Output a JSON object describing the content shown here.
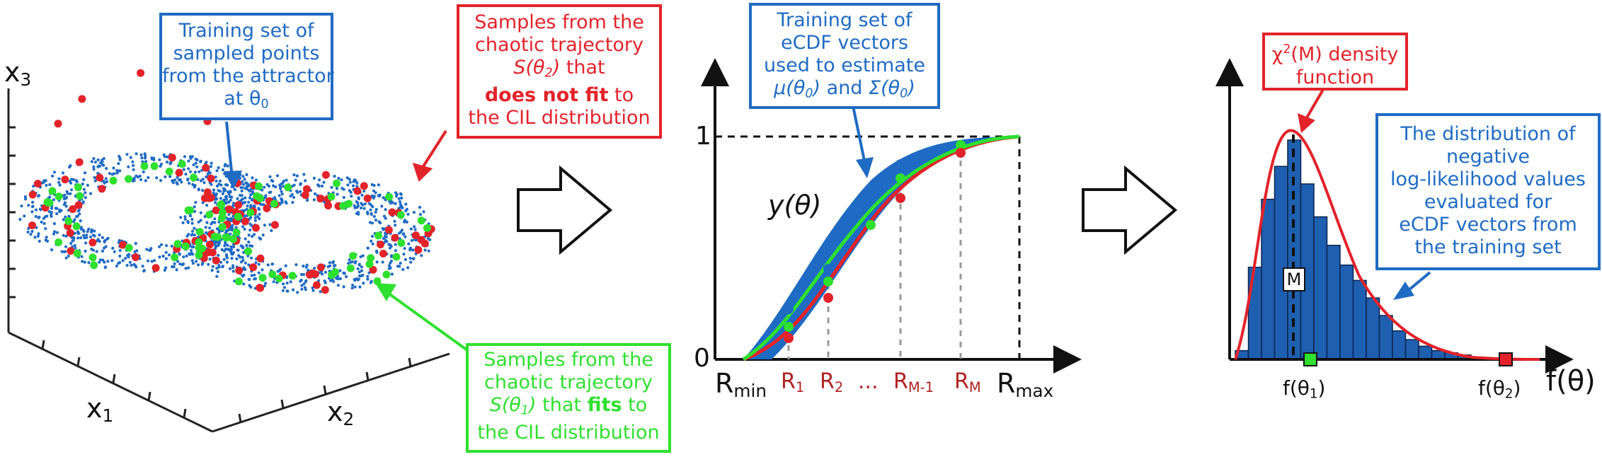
{
  "colors": {
    "blue": "#1f6bc4",
    "red": "#e3232a",
    "green": "#2fe02f",
    "dark_red": "#b22222",
    "histogram": "#1f5fb0"
  },
  "panel1": {
    "axis_x3": "x",
    "axis_x3_sub": "3",
    "axis_x1": "x",
    "axis_x1_sub": "1",
    "axis_x2": "x",
    "axis_x2_sub": "2",
    "caption_blue": [
      "Training set of",
      "sampled points",
      "from the attractor",
      "at θ",
      "0"
    ],
    "caption_red": {
      "l1": "Samples from the",
      "l2": "chaotic trajectory",
      "l3_pre": "S(θ",
      "l3_sub": "2",
      "l3_post": ")",
      "l3_tail": " that",
      "l4": "does not fit",
      "l4_tail": " to",
      "l5": "the CIL distribution"
    },
    "caption_green": {
      "l1": "Samples from the",
      "l2": "chaotic trajectory",
      "l3_pre": "S(θ",
      "l3_sub": "1",
      "l3_post": ")",
      "l3_mid": " that ",
      "l3_bold": "fits",
      "l3_tail": " to",
      "l4": "the CIL distribution"
    }
  },
  "panel2": {
    "caption_blue": {
      "l1": "Training set of",
      "l2": "eCDF vectors",
      "l3": "used to estimate",
      "l4_a": "μ(θ",
      "l4_a_sub": "0",
      "l4_a_post": ")",
      "l4_and": " and ",
      "l4_b": "Σ(θ",
      "l4_b_sub": "0",
      "l4_b_post": ")"
    },
    "y_one": "1",
    "y_zero": "0",
    "curve_label": "y(θ)",
    "x_labels": {
      "rmin": "R",
      "rmin_sub": "min",
      "r1": "R",
      "r1_sub": "1",
      "r2": "R",
      "r2_sub": "2",
      "dots": "...",
      "rm1": "R",
      "rm1_sub": "M-1",
      "rm": "R",
      "rm_sub": "M",
      "rmax": "R",
      "rmax_sub": "max"
    }
  },
  "panel3": {
    "caption_red": {
      "pre": "χ",
      "sup": "2",
      "post": "(M) density",
      "l2": "function"
    },
    "caption_blue": [
      "The distribution of",
      "negative",
      "log-likelihood values",
      "evaluated for",
      "eCDF vectors from",
      "the training set"
    ],
    "m_label": "M",
    "x_axis": "f(θ)",
    "f1": "f(θ",
    "f1_sub": "1",
    "f1_post": ")",
    "f2": "f(θ",
    "f2_sub": "2",
    "f2_post": ")",
    "histogram_bars": [
      0.04,
      0.42,
      0.73,
      0.88,
      1.0,
      0.8,
      0.65,
      0.52,
      0.43,
      0.36,
      0.28,
      0.2,
      0.13,
      0.09,
      0.06,
      0.04,
      0.03,
      0.02
    ]
  }
}
